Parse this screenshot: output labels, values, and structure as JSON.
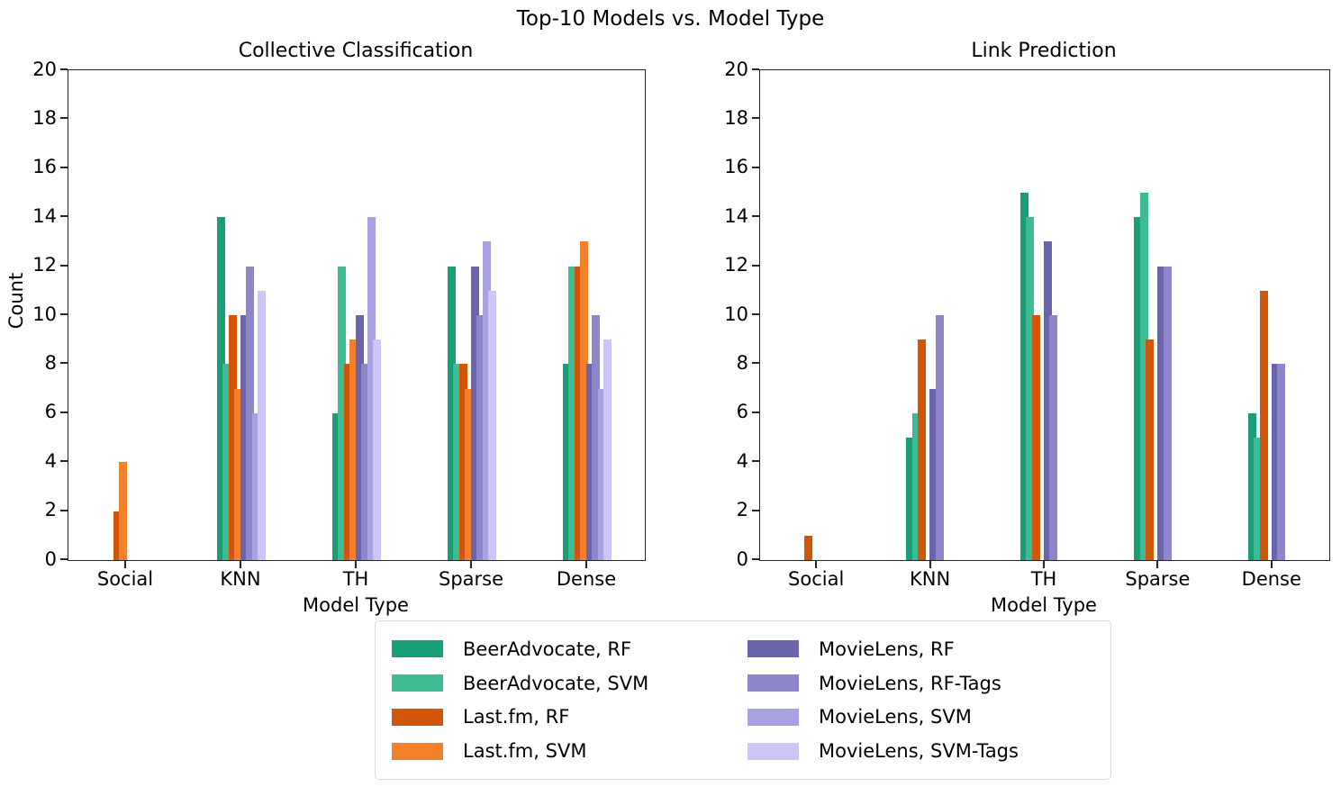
{
  "figure_title": "Top-10 Models vs. Model Type",
  "colors": {
    "spine": "#262626",
    "legend_border": "#d9d9d9",
    "text": "#000000"
  },
  "chart_data": [
    {
      "type": "bar",
      "title": "Collective Classification",
      "xlabel": "Model Type",
      "ylabel": "Count",
      "ylim": [
        0,
        20
      ],
      "ytick_step": 2,
      "yticks": [
        0,
        2,
        4,
        6,
        8,
        10,
        12,
        14,
        16,
        18,
        20
      ],
      "grid": false,
      "categories": [
        "Social",
        "KNN",
        "TH",
        "Sparse",
        "Dense"
      ],
      "series": [
        {
          "name": "BeerAdvocate, RF",
          "color": "#1a9e77",
          "values": [
            0,
            14,
            6,
            12,
            8
          ]
        },
        {
          "name": "BeerAdvocate, SVM",
          "color": "#3ebb92",
          "values": [
            0,
            8,
            12,
            8,
            12
          ]
        },
        {
          "name": "Last.fm, RF",
          "color": "#d2550a",
          "values": [
            2,
            10,
            8,
            8,
            12
          ]
        },
        {
          "name": "Last.fm, SVM",
          "color": "#f3812c",
          "values": [
            4,
            7,
            9,
            7,
            13
          ]
        },
        {
          "name": "MovieLens, RF",
          "color": "#6a64ad",
          "values": [
            0,
            10,
            10,
            12,
            8
          ]
        },
        {
          "name": "MovieLens, RF-Tags",
          "color": "#8d87c9",
          "values": [
            0,
            12,
            8,
            10,
            10
          ]
        },
        {
          "name": "MovieLens, SVM",
          "color": "#a9a2e2",
          "values": [
            0,
            6,
            14,
            13,
            7
          ]
        },
        {
          "name": "MovieLens, SVM-Tags",
          "color": "#cbc6f4",
          "values": [
            0,
            11,
            9,
            11,
            9
          ]
        }
      ]
    },
    {
      "type": "bar",
      "title": "Link Prediction",
      "xlabel": "Model Type",
      "ylabel": "",
      "ylim": [
        0,
        20
      ],
      "ytick_step": 2,
      "yticks": [
        0,
        2,
        4,
        6,
        8,
        10,
        12,
        14,
        16,
        18,
        20
      ],
      "grid": false,
      "categories": [
        "Social",
        "KNN",
        "TH",
        "Sparse",
        "Dense"
      ],
      "series": [
        {
          "name": "BeerAdvocate, RF",
          "color": "#1a9e77",
          "values": [
            0,
            5,
            15,
            14,
            6
          ]
        },
        {
          "name": "BeerAdvocate, SVM",
          "color": "#3ebb92",
          "values": [
            0,
            6,
            14,
            15,
            5
          ]
        },
        {
          "name": "Last.fm, RF",
          "color": "#d2550a",
          "values": [
            1,
            9,
            10,
            9,
            11
          ]
        },
        {
          "name": "Last.fm, SVM",
          "color": "#f3812c",
          "values": [
            0,
            0,
            0,
            0,
            0
          ]
        },
        {
          "name": "MovieLens, RF",
          "color": "#6a64ad",
          "values": [
            0,
            7,
            13,
            12,
            8
          ]
        },
        {
          "name": "MovieLens, RF-Tags",
          "color": "#8d87c9",
          "values": [
            0,
            10,
            10,
            12,
            8
          ]
        },
        {
          "name": "MovieLens, SVM",
          "color": "#a9a2e2",
          "values": [
            0,
            0,
            0,
            0,
            0
          ]
        },
        {
          "name": "MovieLens, SVM-Tags",
          "color": "#cbc6f4",
          "values": [
            0,
            0,
            0,
            0,
            0
          ]
        }
      ]
    }
  ],
  "legend": {
    "columns": 2,
    "items": [
      "BeerAdvocate, RF",
      "BeerAdvocate, SVM",
      "Last.fm, RF",
      "Last.fm, SVM",
      "MovieLens, RF",
      "MovieLens, RF-Tags",
      "MovieLens, SVM",
      "MovieLens, SVM-Tags"
    ]
  }
}
